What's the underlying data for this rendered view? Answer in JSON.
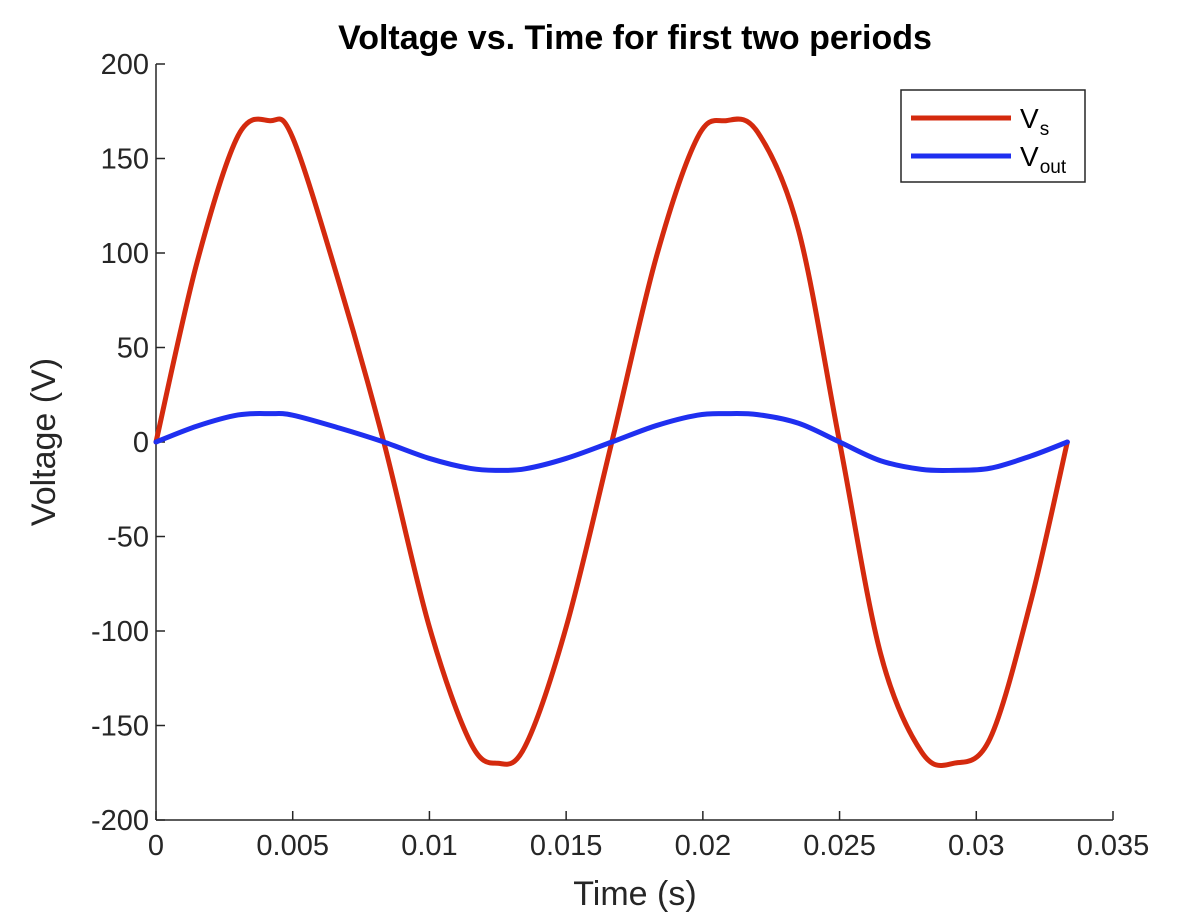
{
  "chart_data": {
    "type": "line",
    "title": "Voltage vs. Time for first two periods",
    "xlabel": "Time (s)",
    "ylabel": "Voltage (V)",
    "xlim": [
      0,
      0.035
    ],
    "ylim": [
      -200,
      200
    ],
    "x_ticks": [
      "0",
      "0.005",
      "0.01",
      "0.015",
      "0.02",
      "0.025",
      "0.03",
      "0.035"
    ],
    "y_ticks": [
      "200",
      "150",
      "100",
      "50",
      "0",
      "-50",
      "-100",
      "-150",
      "-200"
    ],
    "grid": false,
    "legend_position": "top-right",
    "series": [
      {
        "name": "V_s",
        "legend_main": "V",
        "legend_sub": "s",
        "color": "#d42a0e",
        "x": [
          0,
          0.0015,
          0.003,
          0.00417,
          0.005,
          0.0067,
          0.00833,
          0.01,
          0.0115,
          0.0125,
          0.0135,
          0.015,
          0.01667,
          0.0183,
          0.0198,
          0.02083,
          0.022,
          0.0235,
          0.025,
          0.0265,
          0.028,
          0.02917,
          0.0305,
          0.032,
          0.03333
        ],
        "y": [
          0,
          95,
          162,
          170,
          161,
          84,
          0,
          -98,
          -159,
          -170,
          -161,
          -98,
          0,
          98,
          161,
          170,
          164,
          112,
          0,
          -112,
          -164,
          -170,
          -157,
          -84,
          0
        ]
      },
      {
        "name": "V_out",
        "legend_main": "V",
        "legend_sub": "out",
        "color": "#1f2ff0",
        "x": [
          0,
          0.0015,
          0.003,
          0.00417,
          0.005,
          0.0067,
          0.00833,
          0.01,
          0.0115,
          0.0125,
          0.0135,
          0.015,
          0.01667,
          0.0183,
          0.0198,
          0.02083,
          0.022,
          0.0235,
          0.025,
          0.0265,
          0.028,
          0.02917,
          0.0305,
          0.032,
          0.03333
        ],
        "y": [
          0,
          8.4,
          14.3,
          15,
          14.2,
          7.4,
          0,
          -8.7,
          -14,
          -15,
          -14.2,
          -8.7,
          0,
          8.7,
          14.2,
          15,
          14.5,
          9.9,
          0,
          -9.9,
          -14.5,
          -15,
          -13.9,
          -7.4,
          0
        ]
      }
    ]
  }
}
